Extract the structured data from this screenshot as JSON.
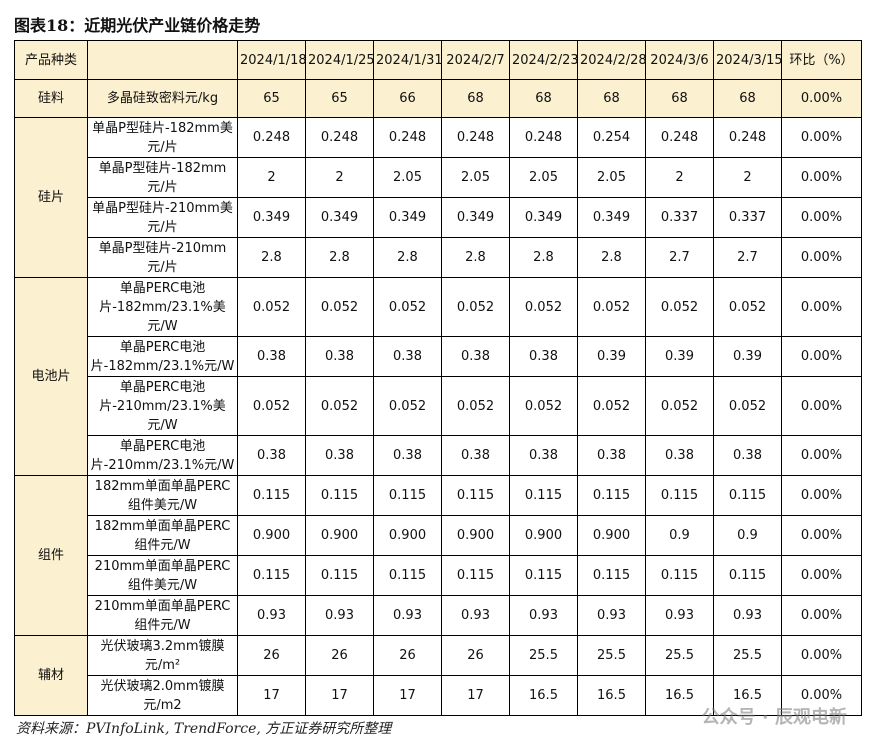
{
  "title": "图表18：近期光伏产业链价格走势",
  "header": {
    "category": "产品种类",
    "dates": [
      "2024/1/18",
      "2024/1/25",
      "2024/1/31",
      "2024/2/7",
      "2024/2/23",
      "2024/2/28",
      "2024/3/6",
      "2024/3/15"
    ],
    "change": "环比（%）"
  },
  "groups": [
    {
      "category": "硅料",
      "rows": [
        {
          "item": "多晶硅致密料元/kg",
          "values": [
            "65",
            "65",
            "66",
            "68",
            "68",
            "68",
            "68",
            "68"
          ],
          "change": "0.00%"
        }
      ]
    },
    {
      "category": "硅片",
      "rows": [
        {
          "item": "单晶P型硅片-182mm美元/片",
          "values": [
            "0.248",
            "0.248",
            "0.248",
            "0.248",
            "0.248",
            "0.254",
            "0.248",
            "0.248"
          ],
          "change": "0.00%"
        },
        {
          "item": "单晶P型硅片-182mm元/片",
          "values": [
            "2",
            "2",
            "2.05",
            "2.05",
            "2.05",
            "2.05",
            "2",
            "2"
          ],
          "change": "0.00%"
        },
        {
          "item": "单晶P型硅片-210mm美元/片",
          "values": [
            "0.349",
            "0.349",
            "0.349",
            "0.349",
            "0.349",
            "0.349",
            "0.337",
            "0.337"
          ],
          "change": "0.00%"
        },
        {
          "item": "单晶P型硅片-210mm元/片",
          "values": [
            "2.8",
            "2.8",
            "2.8",
            "2.8",
            "2.8",
            "2.8",
            "2.7",
            "2.7"
          ],
          "change": "0.00%"
        }
      ]
    },
    {
      "category": "电池片",
      "rows": [
        {
          "item": "单晶PERC电池片-182mm/23.1%美元/W",
          "values": [
            "0.052",
            "0.052",
            "0.052",
            "0.052",
            "0.052",
            "0.052",
            "0.052",
            "0.052"
          ],
          "change": "0.00%"
        },
        {
          "item": "单晶PERC电池片-182mm/23.1%元/W",
          "values": [
            "0.38",
            "0.38",
            "0.38",
            "0.38",
            "0.38",
            "0.39",
            "0.39",
            "0.39"
          ],
          "change": "0.00%"
        },
        {
          "item": "单晶PERC电池片-210mm/23.1%美元/W",
          "values": [
            "0.052",
            "0.052",
            "0.052",
            "0.052",
            "0.052",
            "0.052",
            "0.052",
            "0.052"
          ],
          "change": "0.00%"
        },
        {
          "item": "单晶PERC电池片-210mm/23.1%元/W",
          "values": [
            "0.38",
            "0.38",
            "0.38",
            "0.38",
            "0.38",
            "0.38",
            "0.38",
            "0.38"
          ],
          "change": "0.00%"
        }
      ]
    },
    {
      "category": "组件",
      "rows": [
        {
          "item": "182mm单面单晶PERC组件美元/W",
          "values": [
            "0.115",
            "0.115",
            "0.115",
            "0.115",
            "0.115",
            "0.115",
            "0.115",
            "0.115"
          ],
          "change": "0.00%"
        },
        {
          "item": "182mm单面单晶PERC组件元/W",
          "values": [
            "0.900",
            "0.900",
            "0.900",
            "0.900",
            "0.900",
            "0.900",
            "0.9",
            "0.9"
          ],
          "change": "0.00%"
        },
        {
          "item": "210mm单面单晶PERC组件美元/W",
          "values": [
            "0.115",
            "0.115",
            "0.115",
            "0.115",
            "0.115",
            "0.115",
            "0.115",
            "0.115"
          ],
          "change": "0.00%"
        },
        {
          "item": "210mm单面单晶PERC组件元/W",
          "values": [
            "0.93",
            "0.93",
            "0.93",
            "0.93",
            "0.93",
            "0.93",
            "0.93",
            "0.93"
          ],
          "change": "0.00%"
        }
      ]
    },
    {
      "category": "辅材",
      "rows": [
        {
          "item": "光伏玻璃3.2mm镀膜元/m²",
          "values": [
            "26",
            "26",
            "26",
            "26",
            "25.5",
            "25.5",
            "25.5",
            "25.5"
          ],
          "change": "0.00%"
        },
        {
          "item": "光伏玻璃2.0mm镀膜元/m2",
          "values": [
            "17",
            "17",
            "17",
            "17",
            "16.5",
            "16.5",
            "16.5",
            "16.5"
          ],
          "change": "0.00%"
        }
      ]
    }
  ],
  "source": "资料来源：PVInfoLink, TrendForce, 方正证券研究所整理",
  "watermark": "公众号 · 辰观电新"
}
